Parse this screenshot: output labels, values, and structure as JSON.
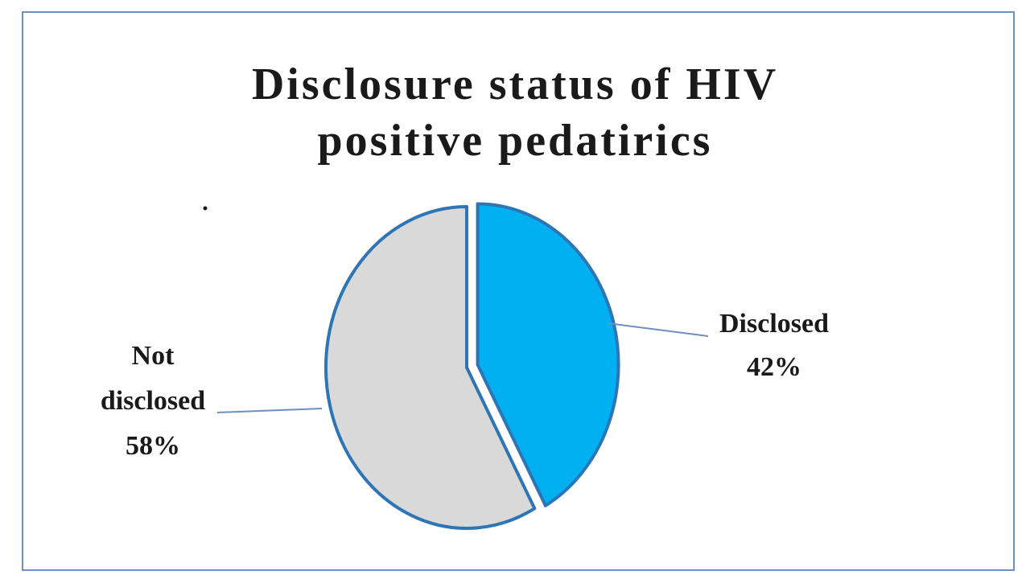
{
  "chart_data": {
    "type": "pie",
    "title_lines": [
      "Disclosure status of HIV",
      "positive pedatirics"
    ],
    "slices": [
      {
        "label_lines": [
          "Disclosed"
        ],
        "value": 42,
        "value_label": "42%",
        "color": "#00b0f0",
        "exploded": true
      },
      {
        "label_lines": [
          "Not",
          "disclosed"
        ],
        "value": 58,
        "value_label": "58%",
        "color": "#d9d9d9",
        "exploded": false
      }
    ],
    "border_color": "#2e75b6",
    "leader_line_color": "#6f8fc0",
    "legend": "none"
  }
}
